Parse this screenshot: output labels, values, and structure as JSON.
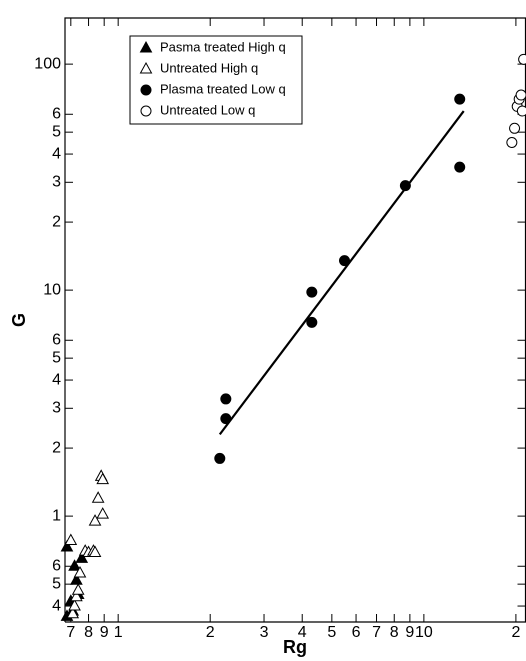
{
  "chart_data": {
    "type": "scatter",
    "x_label": "Rg",
    "y_label": "G",
    "xscale": "log",
    "yscale": "log",
    "xlim": [
      0.67,
      21.5
    ],
    "ylim": [
      0.34,
      160
    ],
    "xticks": [
      {
        "value": 0.7,
        "label": "7"
      },
      {
        "value": 0.8,
        "label": "8"
      },
      {
        "value": 0.9,
        "label": "9"
      },
      1,
      2,
      3,
      4,
      5,
      6,
      7,
      8,
      9,
      10,
      {
        "value": 20,
        "label": "2"
      }
    ],
    "yticks": [
      {
        "value": 0.4,
        "label": "4"
      },
      {
        "value": 0.5,
        "label": "5"
      },
      {
        "value": 0.6,
        "label": "6"
      },
      1,
      2,
      3,
      4,
      5,
      6,
      10,
      {
        "value": 20,
        "label": "2"
      },
      {
        "value": 30,
        "label": "3"
      },
      {
        "value": 40,
        "label": "4"
      },
      {
        "value": 50,
        "label": "5"
      },
      {
        "value": 60,
        "label": "6"
      },
      100
    ],
    "legend_position": "upper left",
    "series": [
      {
        "name": "Pasma treated High q",
        "marker": "triangle-filled",
        "color": "#000000",
        "x": [
          0.68,
          0.68,
          0.7,
          0.71,
          0.72,
          0.73,
          0.74,
          0.76
        ],
        "values": [
          0.73,
          0.36,
          0.42,
          0.38,
          0.6,
          0.52,
          0.45,
          0.65
        ]
      },
      {
        "name": "Untreated High q",
        "marker": "triangle-open",
        "color": "#000000",
        "x": [
          0.7,
          0.71,
          0.72,
          0.73,
          0.74,
          0.75,
          0.78,
          0.8,
          0.83,
          0.84,
          0.84,
          0.86,
          0.88,
          0.89,
          0.89
        ],
        "values": [
          0.78,
          0.37,
          0.4,
          0.44,
          0.47,
          0.56,
          0.7,
          0.69,
          0.7,
          0.69,
          0.95,
          1.2,
          1.5,
          1.45,
          1.02
        ]
      },
      {
        "name": "Plasma treated Low q",
        "marker": "circle-filled",
        "color": "#000000",
        "x": [
          2.15,
          2.25,
          2.25,
          4.3,
          4.3,
          5.5,
          8.7,
          13.1,
          13.1
        ],
        "values": [
          1.8,
          3.3,
          2.7,
          9.8,
          7.2,
          13.5,
          29,
          70,
          35
        ]
      },
      {
        "name": "Untreated Low q",
        "marker": "circle-open",
        "color": "#000000",
        "x": [
          19.4,
          19.8,
          20.2,
          20.5,
          20.8,
          21.0,
          21.2
        ],
        "values": [
          45,
          52,
          65,
          70,
          73,
          62,
          105
        ]
      }
    ],
    "trend_line": {
      "x": [
        2.15,
        13.5
      ],
      "values": [
        2.3,
        62
      ]
    }
  }
}
